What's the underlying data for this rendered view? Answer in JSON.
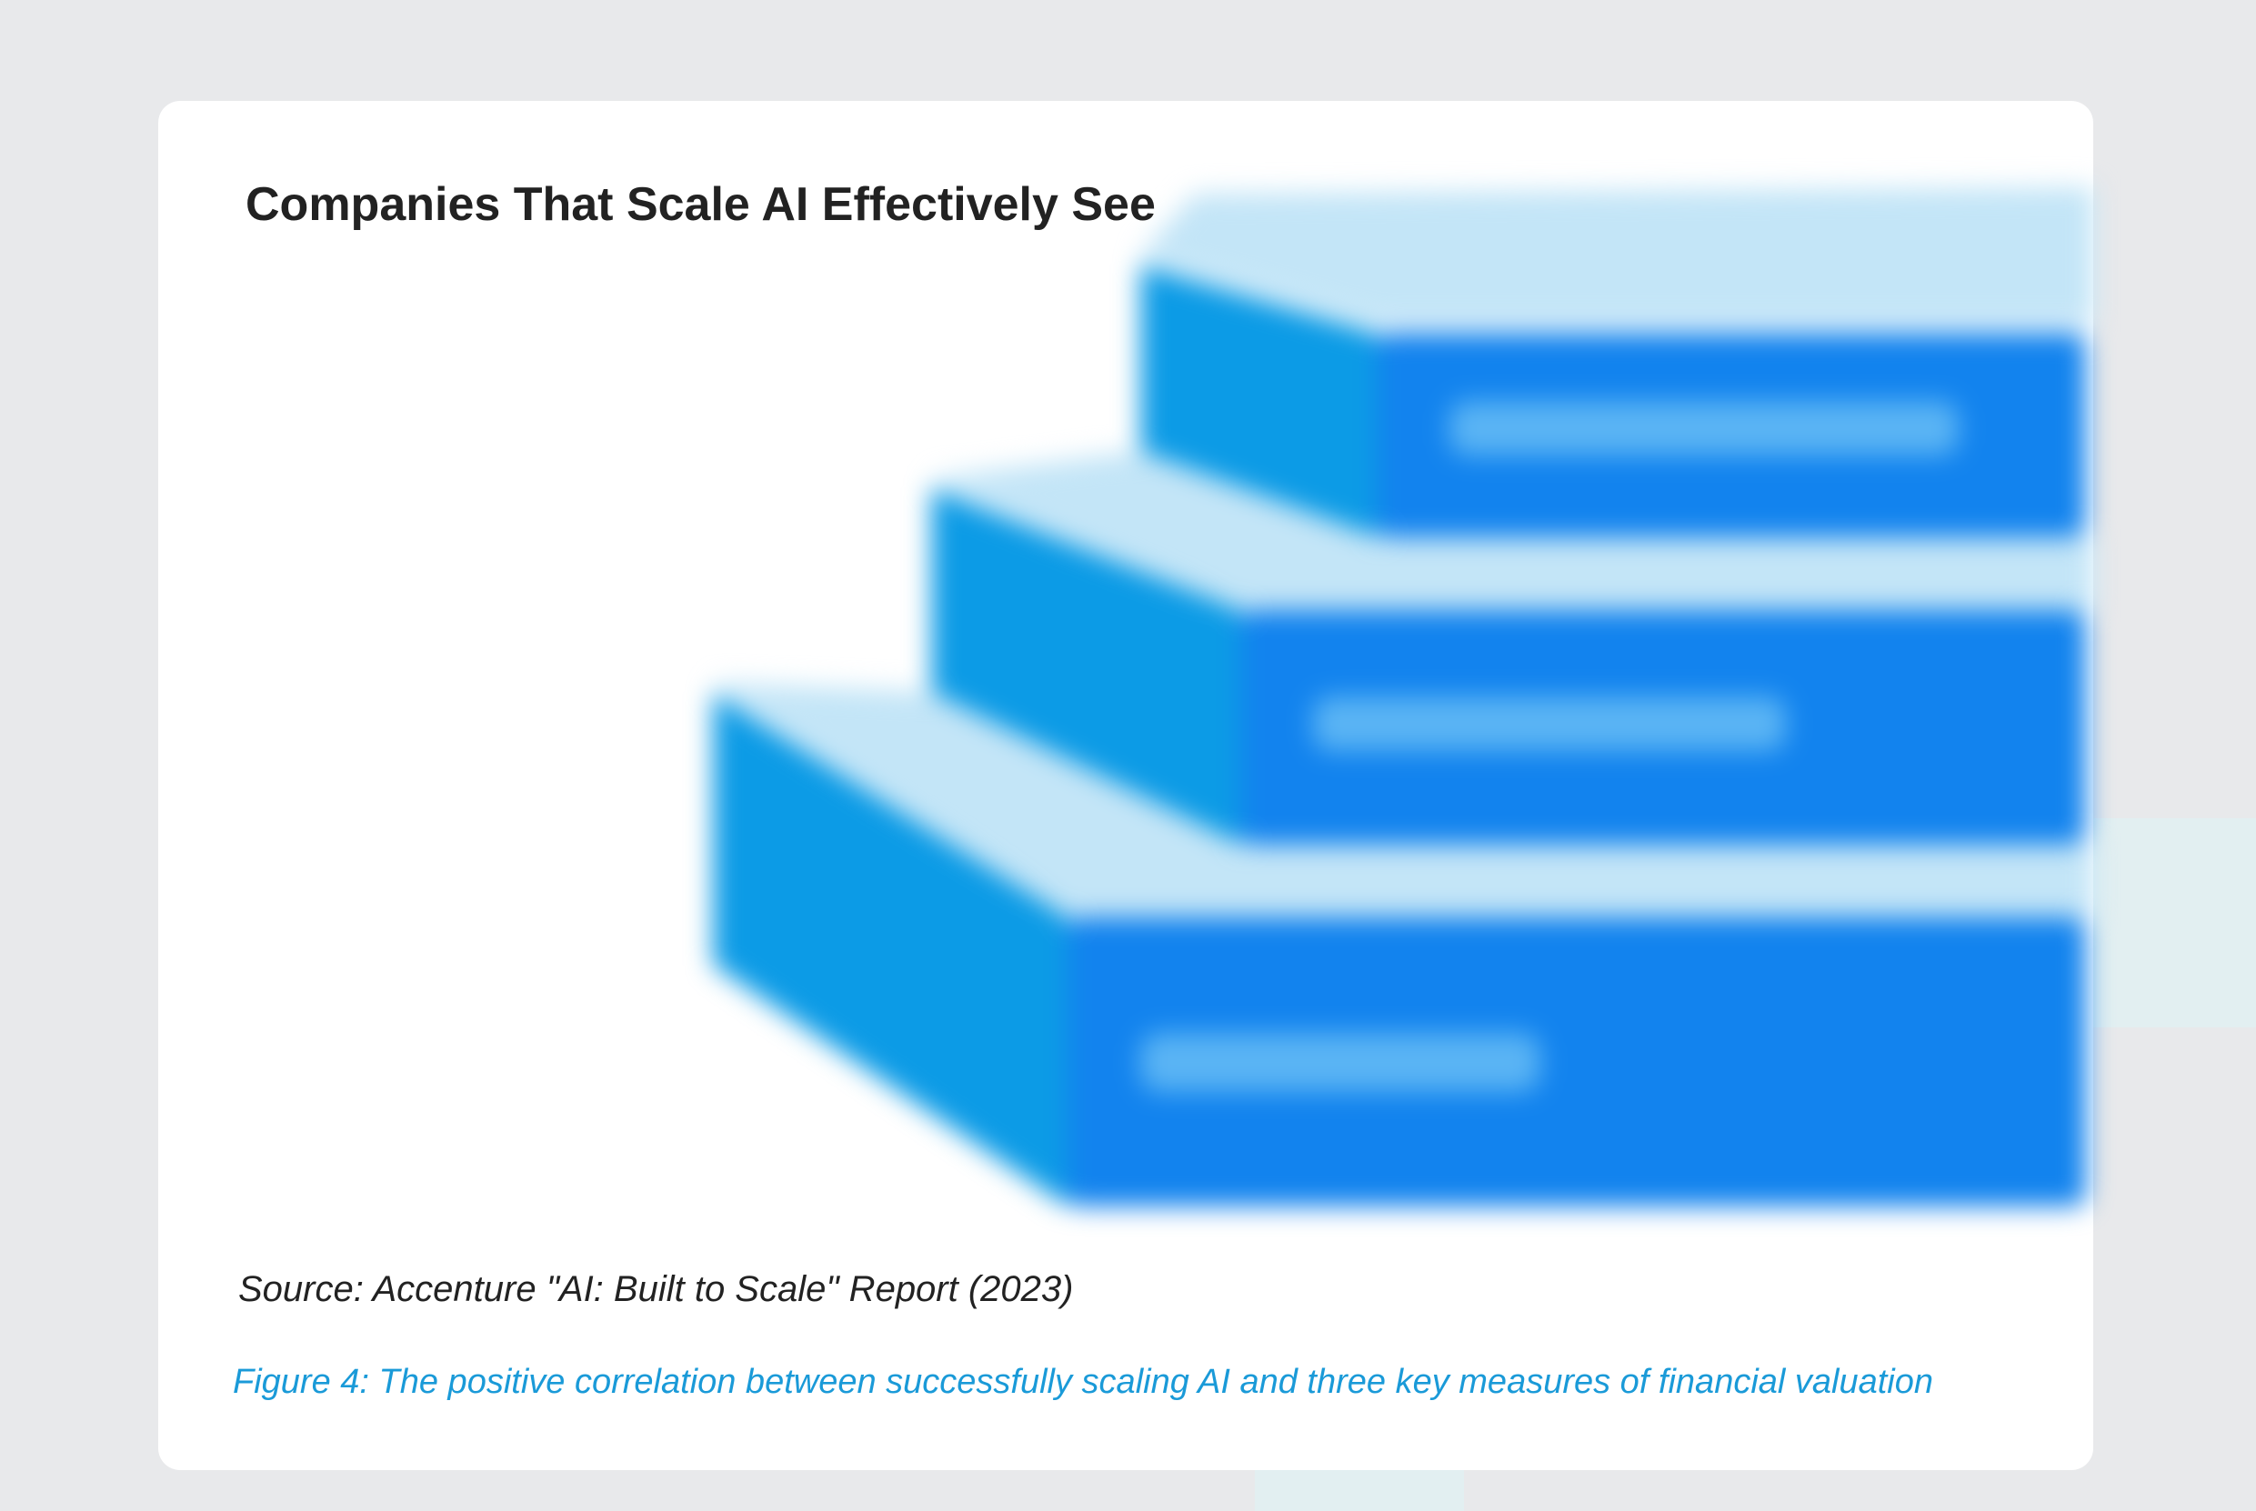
{
  "header": {
    "title": "Companies That Scale AI Effectively See"
  },
  "figure": {
    "source": "Source: Accenture \"AI: Built to Scale\" Report (2023)",
    "caption": "Figure 4: The positive correlation between successfully scaling AI and three key measures of financial valuation",
    "steps_count_visible": 3,
    "content_blurred": true
  },
  "colors": {
    "page_background": "#e8e9eb",
    "card_background": "#ffffff",
    "title_text": "#222222",
    "caption_text": "#1a9ad8",
    "step_front": "#1283ee",
    "step_side": "#0c9be6",
    "step_top": "#c3e5f7"
  }
}
